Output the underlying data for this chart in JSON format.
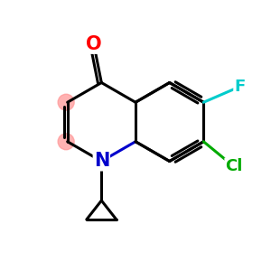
{
  "background": "#ffffff",
  "atom_colors": {
    "O": "#ff0000",
    "N": "#0000cc",
    "F": "#00cccc",
    "Cl": "#00aa00",
    "C": "#000000"
  },
  "bond_color": "#000000",
  "bond_width": 2.2,
  "xlim": [
    0,
    10
  ],
  "ylim": [
    0,
    10
  ],
  "circle_color": "#ff9999",
  "circle_alpha": 0.75
}
